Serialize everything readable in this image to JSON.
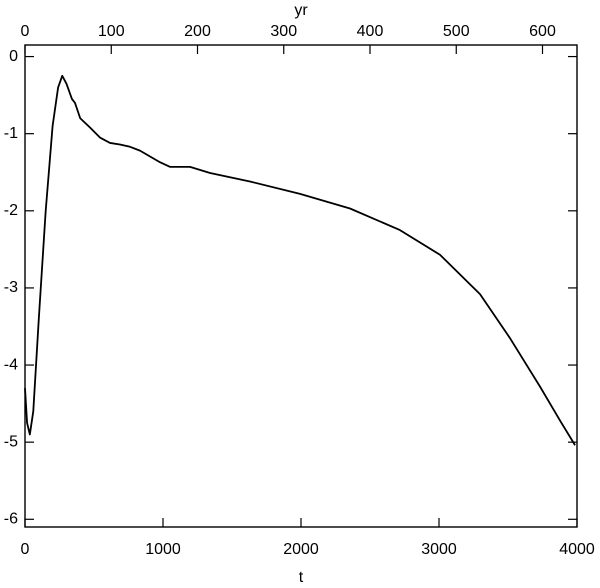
{
  "chart_data": {
    "type": "line",
    "xlabel": "t",
    "x2label": "yr",
    "x": [
      0,
      15,
      35,
      60,
      100,
      150,
      200,
      240,
      270,
      300,
      340,
      362,
      400,
      471,
      543,
      616,
      688,
      761,
      833,
      978,
      1050,
      1196,
      1341,
      1630,
      1993,
      2355,
      2717,
      3007,
      3297,
      3514,
      3732,
      3877,
      3986
    ],
    "values": [
      -4.3,
      -4.75,
      -4.9,
      -4.6,
      -3.4,
      -2.0,
      -0.9,
      -0.4,
      -0.25,
      -0.35,
      -0.55,
      -0.6,
      -0.8,
      -0.92,
      -1.05,
      -1.12,
      -1.14,
      -1.17,
      -1.22,
      -1.37,
      -1.43,
      -1.43,
      -1.51,
      -1.62,
      -1.78,
      -1.97,
      -2.25,
      -2.57,
      -3.08,
      -3.65,
      -4.28,
      -4.72,
      -5.04
    ],
    "color": "#000000",
    "xlim": [
      0,
      4000
    ],
    "xticks": [
      0,
      1000,
      2000,
      3000,
      4000
    ],
    "x2lim": [
      0,
      640
    ],
    "x2ticks": [
      0,
      100,
      200,
      300,
      400,
      500,
      600
    ],
    "ylim": [
      -6.1,
      0.15
    ],
    "yticks": [
      0,
      -1,
      -2,
      -3,
      -4,
      -5,
      -6
    ]
  }
}
